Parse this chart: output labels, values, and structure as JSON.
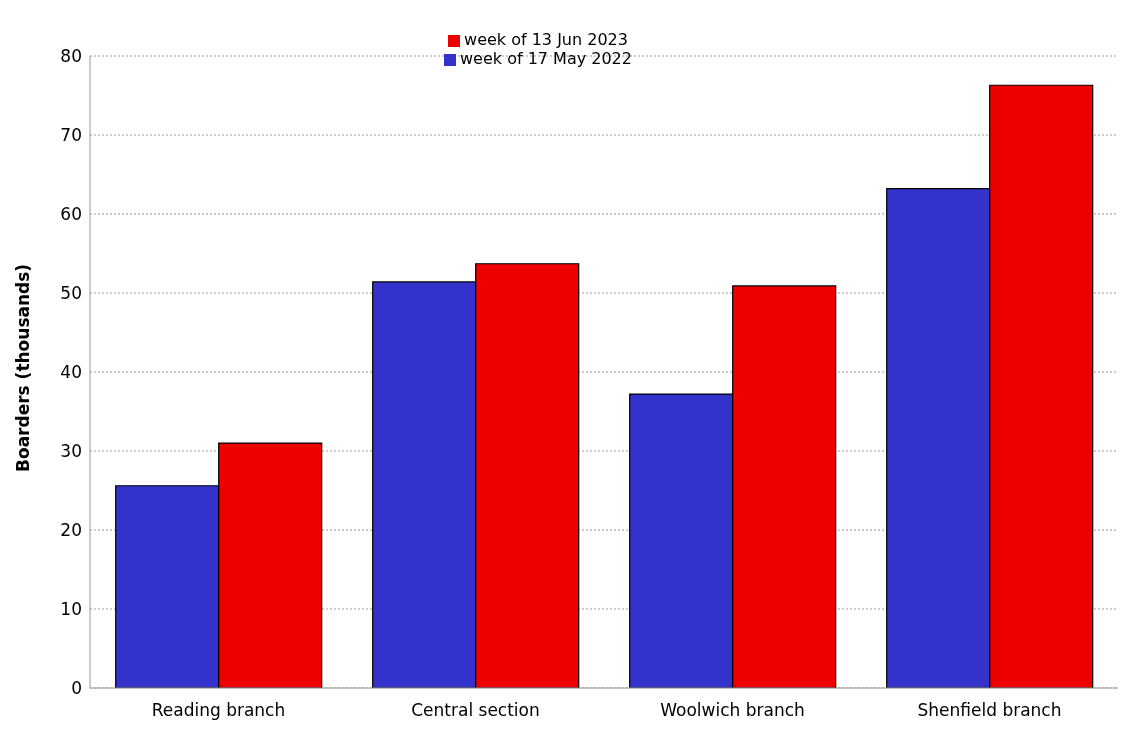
{
  "chart_data": {
    "type": "bar",
    "ylabel": "Boarders (thousands)",
    "categories": [
      "Reading branch",
      "Central section",
      "Woolwich branch",
      "Shenfield branch"
    ],
    "series": [
      {
        "name": "week of 17 May 2022",
        "color": "#3333cc",
        "values": [
          25.6,
          51.4,
          37.2,
          63.2
        ]
      },
      {
        "name": "week of 13 Jun 2023",
        "color": "#ee0000",
        "values": [
          31.0,
          53.7,
          50.9,
          76.3
        ]
      }
    ],
    "ylim": [
      0,
      80
    ],
    "yticks": [
      0,
      10,
      20,
      30,
      40,
      50,
      60,
      70,
      80
    ],
    "grid": "y",
    "legend": "top"
  }
}
